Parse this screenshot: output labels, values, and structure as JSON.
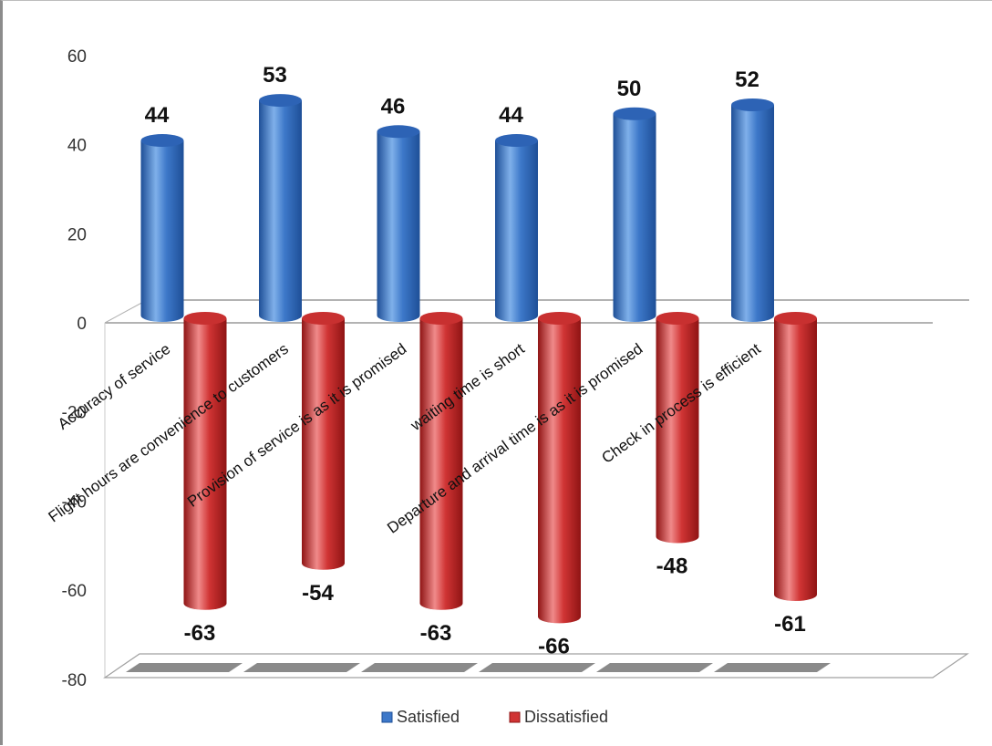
{
  "chart_data": {
    "type": "bar",
    "categories": [
      "Accuracy of service",
      "Flight hours are  convenience to customers",
      "Provision of  service is as it is promised",
      "waiting time is short",
      "Departure and arrival time is as it is promised",
      "Check in process is efficient"
    ],
    "series": [
      {
        "name": "Satisfied",
        "values": [
          44,
          53,
          46,
          44,
          50,
          52
        ],
        "color": "#3d78c9"
      },
      {
        "name": "Dissatisfied",
        "values": [
          -63,
          -54,
          -63,
          -66,
          -48,
          -61
        ],
        "color": "#d03434"
      }
    ],
    "y_ticks": [
      60,
      40,
      20,
      0,
      -20,
      -40,
      -60,
      -80
    ],
    "ylim": [
      -80,
      60
    ],
    "legend_position": "bottom",
    "style": "3d-cylinder"
  }
}
